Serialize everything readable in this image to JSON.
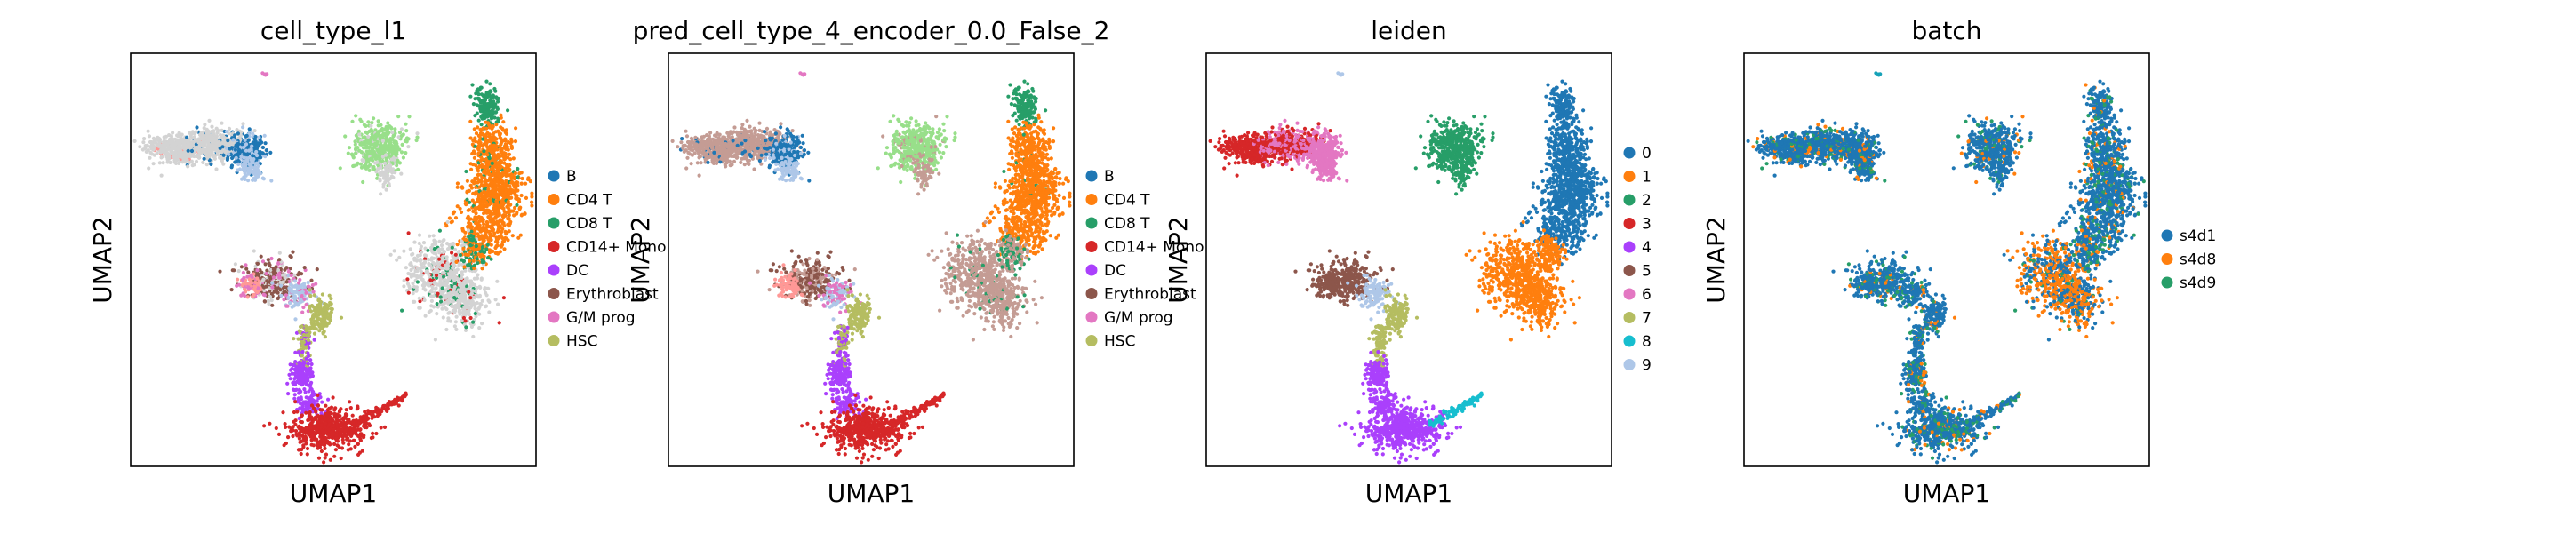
{
  "chart_data": [
    {
      "type": "scatter",
      "title": "cell_type_l1",
      "xlabel": "UMAP1",
      "ylabel": "UMAP2",
      "grid": false,
      "legend_position": "right",
      "legend": [
        {
          "label": "B",
          "color": "#1f77b4"
        },
        {
          "label": "CD4 T",
          "color": "#ff7f0e"
        },
        {
          "label": "CD8 T",
          "color": "#279e68"
        },
        {
          "label": "CD14+ Mono",
          "color": "#d62728"
        },
        {
          "label": "DC",
          "color": "#aa40fc"
        },
        {
          "label": "Erythroblast",
          "color": "#8c564b"
        },
        {
          "label": "G/M prog",
          "color": "#e377c2"
        },
        {
          "label": "HSC",
          "color": "#b5bd61"
        }
      ]
    },
    {
      "type": "scatter",
      "title": "pred_cell_type_4_encoder_0.0_False_2",
      "xlabel": "UMAP1",
      "ylabel": "UMAP2",
      "grid": false,
      "legend_position": "right",
      "legend": [
        {
          "label": "B",
          "color": "#1f77b4"
        },
        {
          "label": "CD4 T",
          "color": "#ff7f0e"
        },
        {
          "label": "CD8 T",
          "color": "#279e68"
        },
        {
          "label": "CD14+ Mono",
          "color": "#d62728"
        },
        {
          "label": "DC",
          "color": "#aa40fc"
        },
        {
          "label": "Erythroblast",
          "color": "#8c564b"
        },
        {
          "label": "G/M prog",
          "color": "#e377c2"
        },
        {
          "label": "HSC",
          "color": "#b5bd61"
        }
      ]
    },
    {
      "type": "scatter",
      "title": "leiden",
      "xlabel": "UMAP1",
      "ylabel": "UMAP2",
      "grid": false,
      "legend_position": "right",
      "legend": [
        {
          "label": "0",
          "color": "#1f77b4"
        },
        {
          "label": "1",
          "color": "#ff7f0e"
        },
        {
          "label": "2",
          "color": "#279e68"
        },
        {
          "label": "3",
          "color": "#d62728"
        },
        {
          "label": "4",
          "color": "#aa40fc"
        },
        {
          "label": "5",
          "color": "#8c564b"
        },
        {
          "label": "6",
          "color": "#e377c2"
        },
        {
          "label": "7",
          "color": "#b5bd61"
        },
        {
          "label": "8",
          "color": "#17becf"
        },
        {
          "label": "9",
          "color": "#aec7e8"
        }
      ]
    },
    {
      "type": "scatter",
      "title": "batch",
      "xlabel": "UMAP1",
      "ylabel": "UMAP2",
      "grid": false,
      "legend_position": "right",
      "legend": [
        {
          "label": "s4d1",
          "color": "#1f77b4"
        },
        {
          "label": "s4d8",
          "color": "#ff7f0e"
        },
        {
          "label": "s4d9",
          "color": "#279e68"
        }
      ]
    }
  ]
}
